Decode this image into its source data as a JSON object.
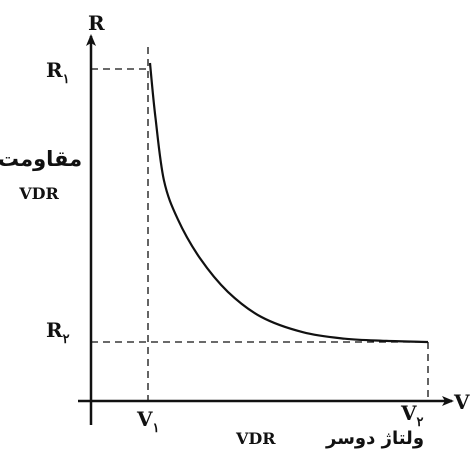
{
  "chart_data": {
    "type": "line",
    "title": "",
    "xlabel": {
      "axis_letter": "V",
      "caption_fa": "ولتاژ دوسر",
      "caption_en": "VDR"
    },
    "ylabel": {
      "axis_letter": "R",
      "caption_fa": "مقاومت",
      "caption_en": "VDR"
    },
    "xticks": [
      {
        "main": "V",
        "sub": "۱"
      },
      {
        "main": "V",
        "sub": "۲"
      }
    ],
    "yticks": [
      {
        "main": "R",
        "sub": "۱"
      },
      {
        "main": "R",
        "sub": "۲"
      }
    ],
    "x": [
      0.0,
      0.02,
      0.05,
      0.1,
      0.18,
      0.28,
      0.4,
      0.55,
      0.7,
      0.85,
      1.0
    ],
    "y": [
      1.0,
      0.8,
      0.58,
      0.44,
      0.3,
      0.18,
      0.09,
      0.035,
      0.012,
      0.004,
      0.0
    ],
    "grid": false,
    "colors": {
      "curve": "#111111",
      "axes": "#111111",
      "guides": "#111111"
    }
  }
}
